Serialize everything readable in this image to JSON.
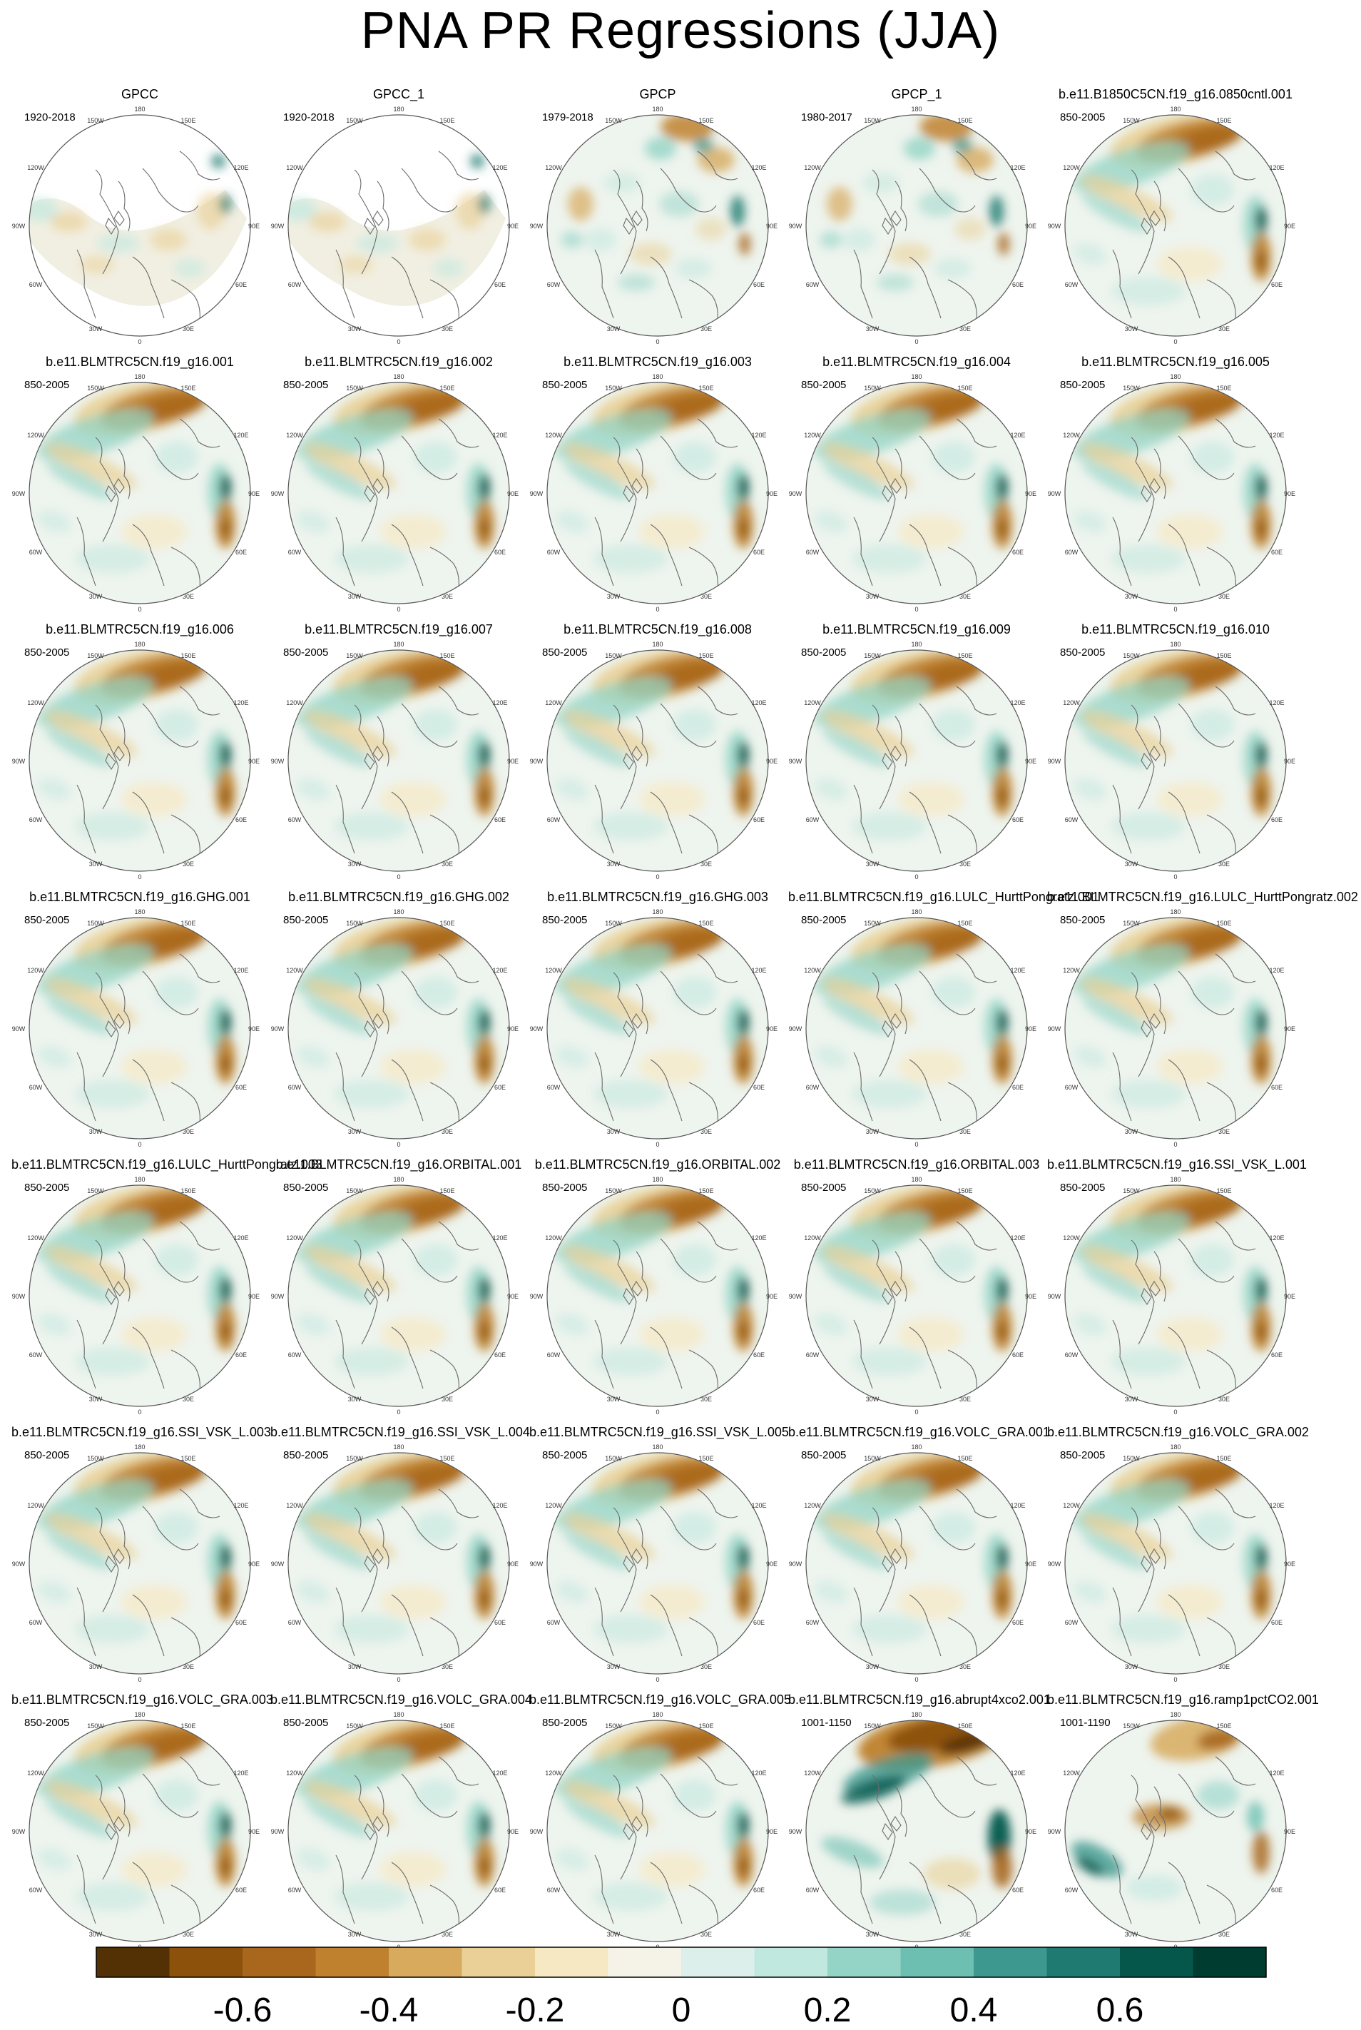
{
  "title": "PNA PR Regressions (JJA)",
  "map_labels": {
    "lon_top": "180",
    "lon_150w": "150W",
    "lon_150e": "150E",
    "lon_120w": "120W",
    "lon_120e": "120E",
    "lon_90w": "90W",
    "lon_90e": "90E",
    "lon_60w": "60W",
    "lon_60e": "60E",
    "lon_30w": "30W",
    "lon_30e": "30E",
    "lon_bottom": "0"
  },
  "panels": [
    {
      "title": "GPCC",
      "years": "1920-2018",
      "pattern": "obs_gpcc"
    },
    {
      "title": "GPCC_1",
      "years": "1920-2018",
      "pattern": "obs_gpcc"
    },
    {
      "title": "GPCP",
      "years": "1979-2018",
      "pattern": "obs_gpcp"
    },
    {
      "title": "GPCP_1",
      "years": "1980-2017",
      "pattern": "obs_gpcp"
    },
    {
      "title": "b.e11.B1850C5CN.f19_g16.0850cntl.001",
      "years": "850-2005",
      "pattern": "model"
    },
    {
      "title": "b.e11.BLMTRC5CN.f19_g16.001",
      "years": "850-2005",
      "pattern": "model"
    },
    {
      "title": "b.e11.BLMTRC5CN.f19_g16.002",
      "years": "850-2005",
      "pattern": "model"
    },
    {
      "title": "b.e11.BLMTRC5CN.f19_g16.003",
      "years": "850-2005",
      "pattern": "model"
    },
    {
      "title": "b.e11.BLMTRC5CN.f19_g16.004",
      "years": "850-2005",
      "pattern": "model"
    },
    {
      "title": "b.e11.BLMTRC5CN.f19_g16.005",
      "years": "850-2005",
      "pattern": "model"
    },
    {
      "title": "b.e11.BLMTRC5CN.f19_g16.006",
      "years": "850-2005",
      "pattern": "model"
    },
    {
      "title": "b.e11.BLMTRC5CN.f19_g16.007",
      "years": "850-2005",
      "pattern": "model"
    },
    {
      "title": "b.e11.BLMTRC5CN.f19_g16.008",
      "years": "850-2005",
      "pattern": "model"
    },
    {
      "title": "b.e11.BLMTRC5CN.f19_g16.009",
      "years": "850-2005",
      "pattern": "model"
    },
    {
      "title": "b.e11.BLMTRC5CN.f19_g16.010",
      "years": "850-2005",
      "pattern": "model"
    },
    {
      "title": "b.e11.BLMTRC5CN.f19_g16.GHG.001",
      "years": "850-2005",
      "pattern": "model"
    },
    {
      "title": "b.e11.BLMTRC5CN.f19_g16.GHG.002",
      "years": "850-2005",
      "pattern": "model"
    },
    {
      "title": "b.e11.BLMTRC5CN.f19_g16.GHG.003",
      "years": "850-2005",
      "pattern": "model"
    },
    {
      "title": "b.e11.BLMTRC5CN.f19_g16.LULC_HurttPongratz.001",
      "years": "850-2005",
      "pattern": "model"
    },
    {
      "title": "b.e11.BLMTRC5CN.f19_g16.LULC_HurttPongratz.002",
      "years": "850-2005",
      "pattern": "model"
    },
    {
      "title": "b.e11.BLMTRC5CN.f19_g16.LULC_HurttPongratz.003",
      "years": "850-2005",
      "pattern": "model"
    },
    {
      "title": "b.e11.BLMTRC5CN.f19_g16.ORBITAL.001",
      "years": "850-2005",
      "pattern": "model"
    },
    {
      "title": "b.e11.BLMTRC5CN.f19_g16.ORBITAL.002",
      "years": "850-2005",
      "pattern": "model"
    },
    {
      "title": "b.e11.BLMTRC5CN.f19_g16.ORBITAL.003",
      "years": "850-2005",
      "pattern": "model"
    },
    {
      "title": "b.e11.BLMTRC5CN.f19_g16.SSI_VSK_L.001",
      "years": "850-2005",
      "pattern": "model"
    },
    {
      "title": "b.e11.BLMTRC5CN.f19_g16.SSI_VSK_L.003",
      "years": "850-2005",
      "pattern": "model"
    },
    {
      "title": "b.e11.BLMTRC5CN.f19_g16.SSI_VSK_L.004",
      "years": "850-2005",
      "pattern": "model"
    },
    {
      "title": "b.e11.BLMTRC5CN.f19_g16.SSI_VSK_L.005",
      "years": "850-2005",
      "pattern": "model"
    },
    {
      "title": "b.e11.BLMTRC5CN.f19_g16.VOLC_GRA.001",
      "years": "850-2005",
      "pattern": "model"
    },
    {
      "title": "b.e11.BLMTRC5CN.f19_g16.VOLC_GRA.002",
      "years": "850-2005",
      "pattern": "model"
    },
    {
      "title": "b.e11.BLMTRC5CN.f19_g16.VOLC_GRA.003",
      "years": "850-2005",
      "pattern": "model"
    },
    {
      "title": "b.e11.BLMTRC5CN.f19_g16.VOLC_GRA.004",
      "years": "850-2005",
      "pattern": "model"
    },
    {
      "title": "b.e11.BLMTRC5CN.f19_g16.VOLC_GRA.005",
      "years": "850-2005",
      "pattern": "model"
    },
    {
      "title": "b.e11.BLMTRC5CN.f19_g16.abrupt4xco2.001",
      "years": "1001-1150",
      "pattern": "abrupt"
    },
    {
      "title": "b.e11.BLMTRC5CN.f19_g16.ramp1pctCO2.001",
      "years": "1001-1190",
      "pattern": "ramp"
    }
  ],
  "colorbar": {
    "colors": [
      "#543005",
      "#8c510a",
      "#a8671c",
      "#bf812d",
      "#d7aa5e",
      "#ead096",
      "#f6e8c3",
      "#f5f2e8",
      "#dcefeb",
      "#c1e8df",
      "#93d4c6",
      "#6dbfb1",
      "#3d988f",
      "#1f7b72",
      "#05574c",
      "#003c30"
    ],
    "tick_labels": [
      "-0.6",
      "-0.4",
      "-0.2",
      "0",
      "0.2",
      "0.4",
      "0.6"
    ],
    "tick_values": [
      -0.6,
      -0.4,
      -0.2,
      0,
      0.2,
      0.4,
      0.6
    ],
    "range": [
      -0.8,
      0.8
    ]
  }
}
